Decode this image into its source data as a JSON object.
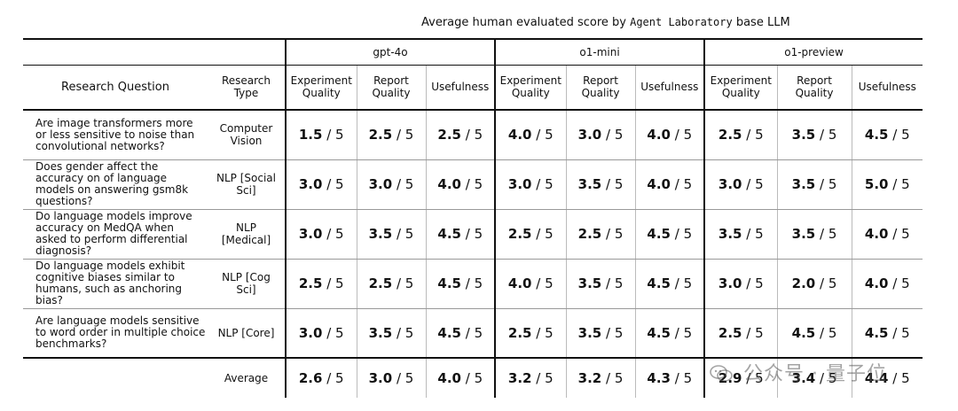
{
  "title": {
    "prefix": "Average human evaluated score by",
    "mono": "Agent Laboratory",
    "suffix": "base LLM"
  },
  "header": {
    "question_col": "Research Question",
    "type_col": "Research Type",
    "models": [
      "gpt-4o",
      "o1-mini",
      "o1-preview"
    ],
    "metrics": [
      "Experiment Quality",
      "Report Quality",
      "Usefulness"
    ]
  },
  "denominator": "/ 5",
  "rows": [
    {
      "question": "Are image transformers more or less sensitive to noise than convolutional networks?",
      "type": "Computer Vision",
      "scores": [
        "1.5",
        "2.5",
        "2.5",
        "4.0",
        "3.0",
        "4.0",
        "2.5",
        "3.5",
        "4.5"
      ]
    },
    {
      "question": "Does gender affect the accuracy on of language models on answering gsm8k questions?",
      "type": "NLP [Social Sci]",
      "scores": [
        "3.0",
        "3.0",
        "4.0",
        "3.0",
        "3.5",
        "4.0",
        "3.0",
        "3.5",
        "5.0"
      ]
    },
    {
      "question": "Do language models improve accuracy on MedQA when asked to perform differential diagnosis?",
      "type": "NLP [Medical]",
      "scores": [
        "3.0",
        "3.5",
        "4.5",
        "2.5",
        "2.5",
        "4.5",
        "3.5",
        "3.5",
        "4.0"
      ]
    },
    {
      "question": "Do language models exhibit cognitive biases similar to humans, such as anchoring bias?",
      "type": "NLP [Cog Sci]",
      "scores": [
        "2.5",
        "2.5",
        "4.5",
        "4.0",
        "3.5",
        "4.5",
        "3.0",
        "2.0",
        "4.0"
      ]
    },
    {
      "question": "Are language models sensitive to word order in multiple choice benchmarks?",
      "type": "NLP [Core]",
      "scores": [
        "3.0",
        "3.5",
        "4.5",
        "2.5",
        "3.5",
        "4.5",
        "2.5",
        "4.5",
        "4.5"
      ]
    }
  ],
  "average": {
    "label": "Average",
    "scores": [
      "2.6",
      "3.0",
      "4.0",
      "3.2",
      "3.2",
      "4.3",
      "2.9",
      "3.4",
      "4.4"
    ]
  },
  "watermark": "公众号 · 量子位",
  "chart_data": {
    "type": "table",
    "title": "Average human evaluated score by Agent Laboratory base LLM",
    "columns": [
      "Research Question",
      "Research Type",
      "gpt-4o Experiment Quality",
      "gpt-4o Report Quality",
      "gpt-4o Usefulness",
      "o1-mini Experiment Quality",
      "o1-mini Report Quality",
      "o1-mini Usefulness",
      "o1-preview Experiment Quality",
      "o1-preview Report Quality",
      "o1-preview Usefulness"
    ],
    "scale_max": 5,
    "rows": [
      [
        "Are image transformers more or less sensitive to noise than convolutional networks?",
        "Computer Vision",
        1.5,
        2.5,
        2.5,
        4.0,
        3.0,
        4.0,
        2.5,
        3.5,
        4.5
      ],
      [
        "Does gender affect the accuracy on of language models on answering gsm8k questions?",
        "NLP [Social Sci]",
        3.0,
        3.0,
        4.0,
        3.0,
        3.5,
        4.0,
        3.0,
        3.5,
        5.0
      ],
      [
        "Do language models improve accuracy on MedQA when asked to perform differential diagnosis?",
        "NLP [Medical]",
        3.0,
        3.5,
        4.5,
        2.5,
        2.5,
        4.5,
        3.5,
        3.5,
        4.0
      ],
      [
        "Do language models exhibit cognitive biases similar to humans, such as anchoring bias?",
        "NLP [Cog Sci]",
        2.5,
        2.5,
        4.5,
        4.0,
        3.5,
        4.5,
        3.0,
        2.0,
        4.0
      ],
      [
        "Are language models sensitive to word order in multiple choice benchmarks?",
        "NLP [Core]",
        3.0,
        3.5,
        4.5,
        2.5,
        3.5,
        4.5,
        2.5,
        4.5,
        4.5
      ],
      [
        "Average",
        "",
        2.6,
        3.0,
        4.0,
        3.2,
        3.2,
        4.3,
        2.9,
        3.4,
        4.4
      ]
    ]
  }
}
